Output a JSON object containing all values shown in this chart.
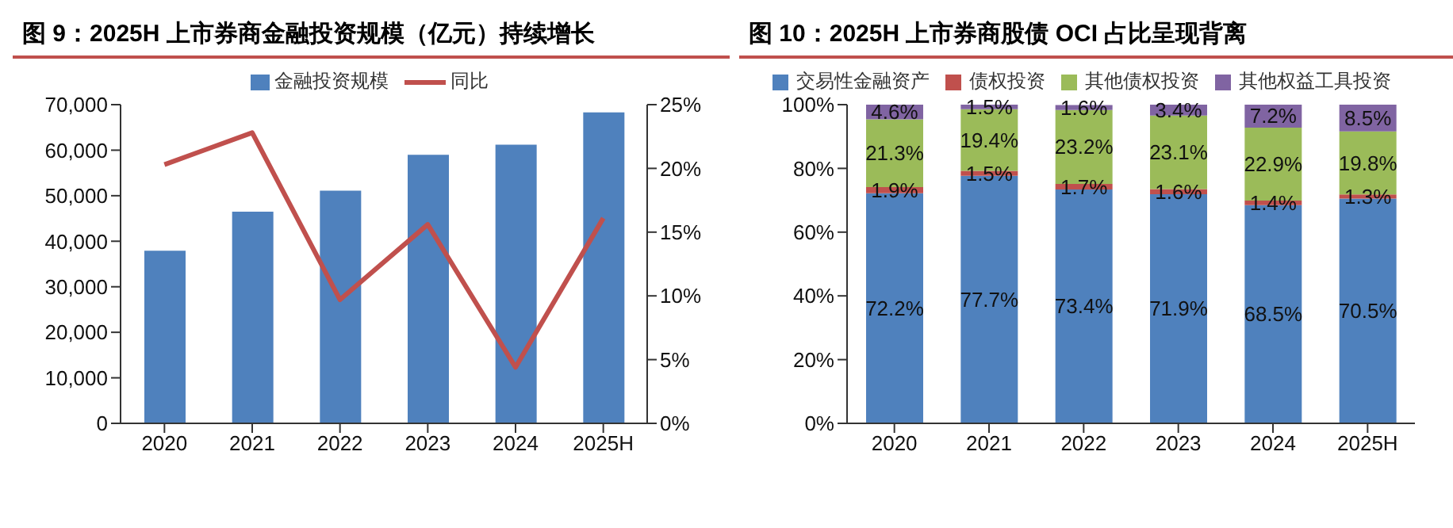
{
  "chart_data": [
    {
      "type": "bar",
      "title": "图 9：2025H 上市券商金融投资规模（亿元）持续增长",
      "categories": [
        "2020",
        "2021",
        "2022",
        "2023",
        "2024",
        "2025H"
      ],
      "series": [
        {
          "name": "金融投资规模",
          "type": "bar",
          "color": "#4f81bd",
          "values": [
            37900,
            46500,
            51100,
            59000,
            61200,
            68300
          ]
        },
        {
          "name": "同比",
          "type": "line",
          "axis": "y2",
          "color": "#c0504d",
          "values": [
            20.3,
            22.8,
            9.7,
            15.6,
            4.4,
            16.1
          ]
        }
      ],
      "ylim": [
        0,
        70000
      ],
      "yticks": [
        {
          "value": 0,
          "label": "0"
        },
        {
          "value": 10000,
          "label": "10,000"
        },
        {
          "value": 20000,
          "label": "20,000"
        },
        {
          "value": 30000,
          "label": "30,000"
        },
        {
          "value": 40000,
          "label": "40,000"
        },
        {
          "value": 50000,
          "label": "50,000"
        },
        {
          "value": 60000,
          "label": "60,000"
        },
        {
          "value": 70000,
          "label": "70,000"
        }
      ],
      "y2lim": [
        0,
        25
      ],
      "y2ticks": [
        {
          "value": 0,
          "label": "0%"
        },
        {
          "value": 5,
          "label": "5%"
        },
        {
          "value": 10,
          "label": "10%"
        },
        {
          "value": 15,
          "label": "15%"
        },
        {
          "value": 20,
          "label": "20%"
        },
        {
          "value": 25,
          "label": "25%"
        }
      ],
      "marker": "none",
      "legend": "top"
    },
    {
      "type": "bar",
      "title": "图 10：2025H 上市券商股债 OCI 占比呈现背离",
      "stacked": true,
      "categories": [
        "2020",
        "2021",
        "2022",
        "2023",
        "2024",
        "2025H"
      ],
      "series": [
        {
          "name": "交易性金融资产",
          "color": "#4f81bd",
          "values": [
            72.2,
            77.7,
            73.4,
            71.9,
            68.5,
            70.5
          ],
          "value_labels": [
            "72.2%",
            "77.7%",
            "73.4%",
            "71.9%",
            "68.5%",
            "70.5%"
          ]
        },
        {
          "name": "债权投资",
          "color": "#c0504d",
          "values": [
            1.9,
            1.5,
            1.7,
            1.6,
            1.4,
            1.3
          ],
          "value_labels": [
            "1.9%",
            "1.5%",
            "1.7%",
            "1.6%",
            "1.4%",
            "1.3%"
          ]
        },
        {
          "name": "其他债权投资",
          "color": "#9bbb59",
          "values": [
            21.3,
            19.4,
            23.2,
            23.1,
            22.9,
            19.8
          ],
          "value_labels": [
            "21.3%",
            "19.4%",
            "23.2%",
            "23.1%",
            "22.9%",
            "19.8%"
          ]
        },
        {
          "name": "其他权益工具投资",
          "color": "#8064a2",
          "values": [
            4.6,
            1.5,
            1.6,
            3.4,
            7.2,
            8.5
          ],
          "value_labels": [
            "4.6%",
            "1.5%",
            "1.6%",
            "3.4%",
            "7.2%",
            "8.5%"
          ]
        }
      ],
      "ylim": [
        0,
        100
      ],
      "yticks": [
        {
          "value": 0,
          "label": "0%"
        },
        {
          "value": 20,
          "label": "20%"
        },
        {
          "value": 40,
          "label": "40%"
        },
        {
          "value": 60,
          "label": "60%"
        },
        {
          "value": 80,
          "label": "80%"
        },
        {
          "value": 100,
          "label": "100%"
        }
      ],
      "legend": "top"
    }
  ]
}
